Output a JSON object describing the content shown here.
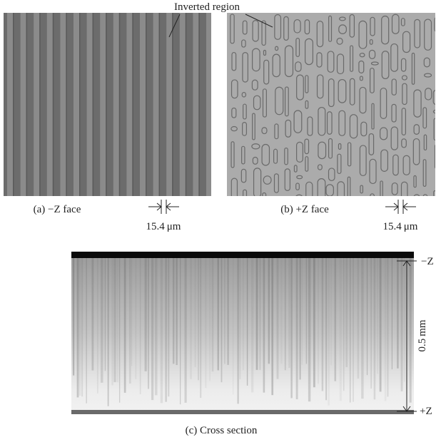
{
  "figure": {
    "annotation": "Inverted region",
    "panels": [
      {
        "caption": "(a) −Z face",
        "scale": "15.4 μm"
      },
      {
        "caption": "(b) +Z face",
        "scale": "15.4 μm"
      },
      {
        "caption": "(c) Cross section",
        "top": "−Z",
        "bottom": "+Z",
        "thickness": "0.5 mm"
      }
    ]
  }
}
